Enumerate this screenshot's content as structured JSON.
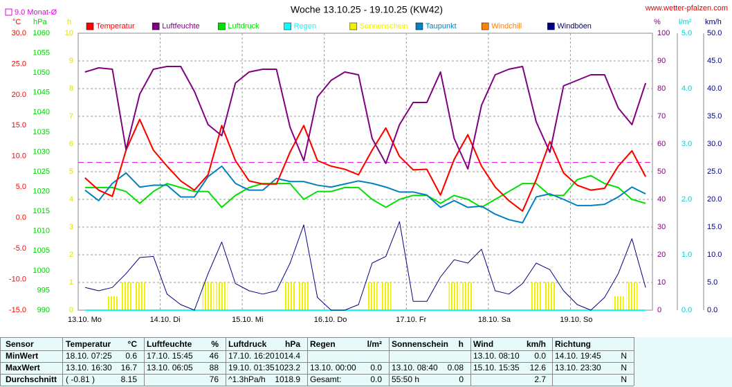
{
  "chart_data": {
    "type": "line",
    "title": "Woche 13.10.25 - 19.10.25 (KW42)",
    "source": "www.wetter-pfalzen.com",
    "monthly_average": {
      "value": 9,
      "label": "9.0 Monat-Ø",
      "color": "#e000e0",
      "axis": 0
    },
    "grid": true,
    "axes": [
      {
        "unit": "°C",
        "color": "#ff0000",
        "lim": [
          -15,
          30
        ],
        "ticks": [
          {
            "value": -15,
            "label": "-15.0"
          },
          {
            "value": -10,
            "label": "-10.0"
          },
          {
            "value": -5,
            "label": "-5.0"
          },
          {
            "value": 0,
            "label": "0.0"
          },
          {
            "value": 5,
            "label": "5.0"
          },
          {
            "value": 10,
            "label": "10.0"
          },
          {
            "value": 15,
            "label": "15.0"
          },
          {
            "value": 20,
            "label": "20.0"
          },
          {
            "value": 25,
            "label": "25.0"
          },
          {
            "value": 30,
            "label": "30.0"
          }
        ]
      },
      {
        "unit": "hPa",
        "color": "#00d000",
        "lim": [
          990,
          1060
        ],
        "ticks": [
          990,
          995,
          1000,
          1005,
          1010,
          1015,
          1020,
          1025,
          1030,
          1035,
          1040,
          1045,
          1050,
          1055,
          1060
        ]
      },
      {
        "unit": "h",
        "color": "#e0e000",
        "lim": [
          0,
          10
        ],
        "ticks": [
          0,
          1,
          2,
          3,
          4,
          5,
          6,
          7,
          8,
          9,
          10
        ]
      },
      {
        "unit": "%",
        "color": "#800080",
        "lim": [
          0,
          100
        ],
        "ticks": [
          0,
          10,
          20,
          30,
          40,
          50,
          60,
          70,
          80,
          90,
          100
        ],
        "grid": true
      },
      {
        "unit": "l/m²",
        "color": "#00d0d0",
        "lim": [
          0,
          5
        ],
        "ticks": [
          {
            "value": 0,
            "label": "0.0"
          },
          {
            "value": 1,
            "label": "1.0"
          },
          {
            "value": 2,
            "label": "2.0"
          },
          {
            "value": 3,
            "label": "3.0"
          },
          {
            "value": 4,
            "label": "4.0"
          },
          {
            "value": 5,
            "label": "5.0"
          }
        ]
      },
      {
        "unit": "km/h",
        "color": "#000080",
        "lim": [
          0,
          50
        ],
        "ticks": [
          {
            "value": 0,
            "label": "0.0"
          },
          {
            "value": 5,
            "label": "5.0"
          },
          {
            "value": 10,
            "label": "10.0"
          },
          {
            "value": 15,
            "label": "15.0"
          },
          {
            "value": 20,
            "label": "20.0"
          },
          {
            "value": 25,
            "label": "25.0"
          },
          {
            "value": 30,
            "label": "30.0"
          },
          {
            "value": 35,
            "label": "35.0"
          },
          {
            "value": 40,
            "label": "40.0"
          },
          {
            "value": 45,
            "label": "45.0"
          },
          {
            "value": 50,
            "label": "50.0"
          }
        ]
      }
    ],
    "categories": [
      "13.10. Mo",
      null,
      null,
      null,
      null,
      null,
      "14.10. Di",
      null,
      null,
      null,
      null,
      null,
      "15.10. Mi",
      null,
      null,
      null,
      null,
      null,
      "16.10. Do",
      null,
      null,
      null,
      null,
      null,
      "17.10. Fr",
      null,
      null,
      null,
      null,
      null,
      "18.10. Sa",
      null,
      null,
      null,
      null,
      null,
      "19.10. So",
      null,
      null,
      null,
      null,
      null
    ],
    "series": [
      {
        "name": "Temperatur",
        "color": "#ff0000",
        "axis": 0,
        "type": "line",
        "values": [
          6.5,
          4.5,
          3.5,
          11,
          16,
          11,
          8.4,
          6,
          4.5,
          7,
          15,
          9.3,
          6,
          5.5,
          5.5,
          10.7,
          15,
          9.3,
          8.4,
          7.9,
          7,
          11,
          14.6,
          10,
          7.8,
          7.9,
          3.7,
          9.5,
          13.5,
          8.4,
          5,
          2.8,
          1.1,
          6.2,
          12.4,
          7.3,
          5.3,
          4.5,
          4.8,
          8.4,
          10.9,
          6.7
        ]
      },
      {
        "name": "Luftfeuchte",
        "color": "#800080",
        "axis": 3,
        "type": "line",
        "values": [
          86,
          87.5,
          87,
          58,
          78,
          87,
          88,
          88,
          79,
          67,
          63,
          82,
          86,
          87,
          87,
          66,
          54,
          77,
          83,
          86,
          85,
          62,
          53,
          67,
          75,
          75,
          86,
          62,
          51,
          74,
          85,
          87,
          88,
          68,
          57,
          81,
          83,
          85,
          85,
          73,
          67,
          82
        ]
      },
      {
        "name": "Luftdruck",
        "color": "#00e000",
        "axis": 1,
        "type": "line",
        "values": [
          1021,
          1021,
          1021,
          1020,
          1017,
          1020,
          1022,
          1021,
          1020,
          1020,
          1016,
          1019,
          1021,
          1022,
          1022,
          1022,
          1018,
          1020,
          1020,
          1021,
          1021,
          1018,
          1016,
          1018,
          1019,
          1019,
          1017,
          1019,
          1018,
          1016,
          1018,
          1020,
          1022,
          1022,
          1019,
          1019,
          1023,
          1024,
          1022,
          1021,
          1018,
          1017
        ]
      },
      {
        "name": "Regen",
        "color": "#00ffff",
        "axis": 4,
        "type": "line",
        "values": [
          0,
          0,
          0,
          0,
          0,
          0,
          0,
          0,
          0,
          0,
          0,
          0,
          0,
          0,
          0,
          0,
          0,
          0,
          0,
          0,
          0,
          0,
          0,
          0,
          0,
          0,
          0,
          0,
          0,
          0,
          0,
          0,
          0,
          0,
          0,
          0,
          0,
          0,
          0,
          0,
          0,
          0
        ]
      },
      {
        "name": "Sonnenschein",
        "color": "#f0f000",
        "axis": 2,
        "type": "bar",
        "values": [
          0,
          0,
          0.5,
          1,
          1,
          0,
          0,
          0,
          0,
          1,
          1,
          0,
          0,
          0,
          0,
          1,
          1,
          0,
          0,
          0,
          0,
          1,
          1,
          0,
          0,
          0,
          0,
          1,
          1,
          0,
          0,
          0,
          0,
          1,
          1,
          0,
          0,
          0,
          0,
          0.5,
          1,
          0
        ]
      },
      {
        "name": "Taupunkt",
        "color": "#0080c0",
        "axis": 0,
        "type": "line",
        "values": [
          4.5,
          2.8,
          5.6,
          7.3,
          5,
          5.3,
          5.3,
          3.4,
          3.4,
          6.7,
          8.4,
          5.6,
          4.5,
          4.5,
          6.4,
          5.9,
          5.9,
          5.3,
          5,
          5.5,
          6,
          5.6,
          5,
          4.2,
          4.2,
          3.7,
          1.7,
          2.8,
          1.7,
          1.9,
          0.6,
          -0.3,
          -0.8,
          3.4,
          3.9,
          3,
          2,
          2,
          2.2,
          3.4,
          5,
          3.9
        ]
      },
      {
        "name": "Windchill",
        "color": "#ff8000",
        "axis": 0,
        "type": "line",
        "values": [
          6.5,
          4.5,
          3.5,
          11,
          16,
          11,
          8.4,
          6,
          4.5,
          7,
          15,
          9.3,
          6,
          5.5,
          5.5,
          10.7,
          15,
          9.3,
          8.4,
          7.9,
          7,
          11,
          14.6,
          10,
          7.8,
          7.9,
          3.7,
          9.5,
          13.5,
          8.4,
          5,
          2.8,
          1.1,
          6.2,
          12.4,
          7.3,
          5.3,
          4.5,
          4.8,
          8.4,
          10.9,
          6.7
        ]
      },
      {
        "name": "Windböen",
        "color": "#000080",
        "axis": 5,
        "type": "line",
        "values": [
          4.1,
          3.5,
          4.1,
          6.6,
          9.5,
          9.7,
          2.9,
          1,
          0,
          6.6,
          12.3,
          4.8,
          3.5,
          2.9,
          3.5,
          8.5,
          15.4,
          2.3,
          0,
          0,
          1,
          8.5,
          9.7,
          16,
          1.6,
          1.6,
          6,
          9.1,
          8.5,
          11,
          3.5,
          2.9,
          4.8,
          8.5,
          7.3,
          3.5,
          1,
          0,
          2.3,
          6.6,
          12.9,
          4.1
        ]
      }
    ]
  },
  "table": {
    "header": [
      "Sensor",
      "Temperatur",
      "°C",
      "Luftfeuchte",
      "%",
      "Luftdruck",
      "hPa",
      "Regen",
      "l/m²",
      "Sonnenschein",
      "h",
      "Wind",
      "km/h",
      "Richtung",
      null
    ],
    "rows": [
      [
        "MinWert",
        "18.10. 07:25",
        "0.6",
        "17.10. 15:45",
        "46",
        "17.10. 16:20",
        "1014.4",
        null,
        null,
        null,
        null,
        "13.10. 08:10",
        "0.0",
        "14.10. 19:45",
        "N"
      ],
      [
        "MaxWert",
        "13.10. 16:30",
        "16.7",
        "13.10. 06:05",
        "88",
        "19.10. 01:35",
        "1023.2",
        "13.10. 00:00",
        "0.0",
        "13.10. 08:40",
        "0.08",
        "15.10. 15:35",
        "12.6",
        "13.10. 23:30",
        "N"
      ],
      [
        "Durchschnitt",
        "( -0.81 )",
        "8.15",
        null,
        "76",
        "^1.3hPa/h",
        "1018.9",
        "Gesamt:",
        "0.0",
        "55:50 h",
        "0",
        null,
        "2.7",
        null,
        "N"
      ]
    ]
  }
}
